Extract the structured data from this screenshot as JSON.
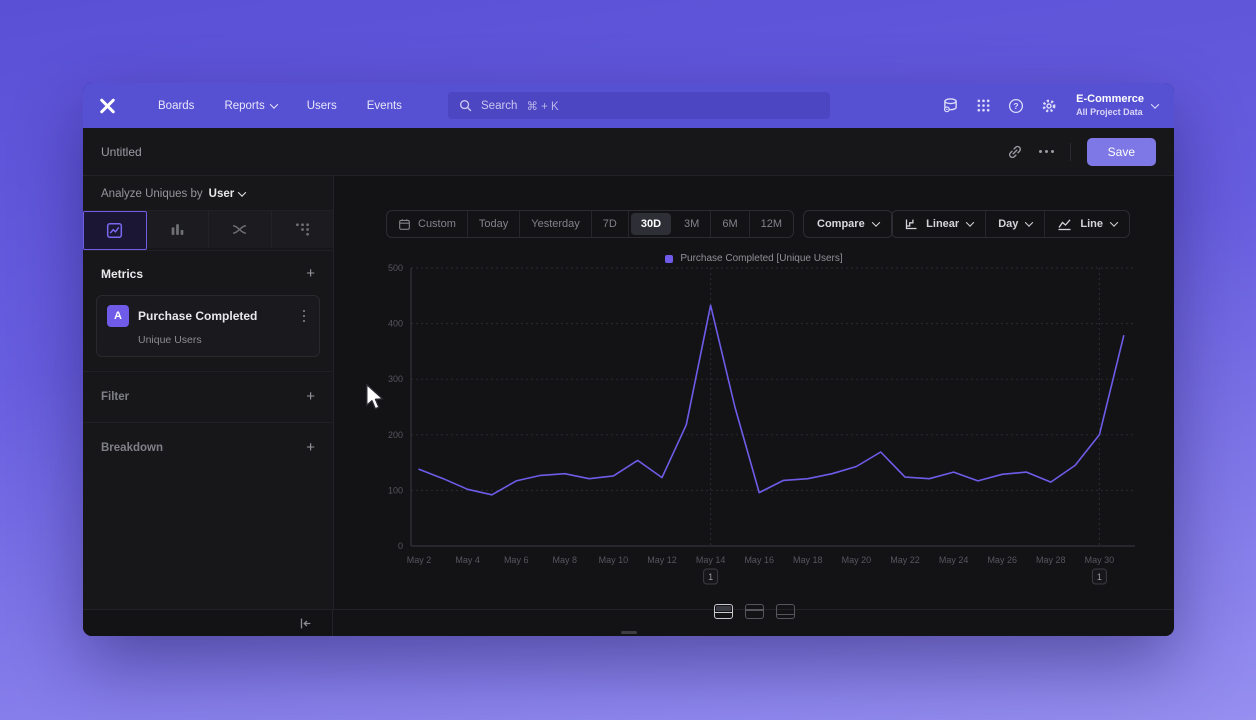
{
  "nav": {
    "items": [
      {
        "label": "Boards",
        "dropdown": false
      },
      {
        "label": "Reports",
        "dropdown": true
      },
      {
        "label": "Users",
        "dropdown": false
      },
      {
        "label": "Events",
        "dropdown": false
      }
    ],
    "search_placeholder": "Search",
    "search_shortcut": "⌘ + K",
    "project_name": "E-Commerce",
    "project_scope": "All Project Data"
  },
  "header": {
    "title": "Untitled",
    "save": "Save"
  },
  "sidebar": {
    "analyze_text": "Analyze Uniques by",
    "analyze_value": "User",
    "metrics_label": "Metrics",
    "add_symbol": "+",
    "metric": {
      "badge": "A",
      "title": "Purchase Completed",
      "subtitle": "Unique Users"
    },
    "filter_label": "Filter",
    "breakdown_label": "Breakdown"
  },
  "toolbar": {
    "ranges": [
      "Custom",
      "Today",
      "Yesterday",
      "7D",
      "30D",
      "3M",
      "6M",
      "12M"
    ],
    "active_range": "30D",
    "compare": "Compare",
    "scale": "Linear",
    "interval": "Day",
    "chart_type": "Line"
  },
  "chart_data": {
    "type": "line",
    "legend": "Purchase Completed [Unique Users]",
    "series_color": "#6e5ce8",
    "x": [
      "May 2",
      "May 3",
      "May 4",
      "May 5",
      "May 6",
      "May 7",
      "May 8",
      "May 9",
      "May 10",
      "May 11",
      "May 12",
      "May 13",
      "May 14",
      "May 15",
      "May 16",
      "May 17",
      "May 18",
      "May 19",
      "May 20",
      "May 21",
      "May 22",
      "May 23",
      "May 24",
      "May 25",
      "May 26",
      "May 27",
      "May 28",
      "May 29",
      "May 30",
      "May 31"
    ],
    "values": [
      138,
      121,
      102,
      92,
      117,
      127,
      130,
      121,
      126,
      154,
      123,
      218,
      433,
      250,
      96,
      118,
      121,
      130,
      143,
      169,
      124,
      121,
      133,
      117,
      129,
      133,
      115,
      145,
      200,
      378
    ],
    "x_tick_every": 2,
    "ylim": [
      0,
      500
    ],
    "yticks": [
      0,
      100,
      200,
      300,
      400,
      500
    ],
    "grid": "dashed-horizontal",
    "legend_position": "top-center",
    "annotations": [
      {
        "x_index": 12,
        "label": "1"
      },
      {
        "x_index": 28,
        "label": "1"
      }
    ]
  },
  "colors": {
    "accent": "#6e5ce8",
    "navbar": "#5651d3",
    "save_button": "#7d78e5",
    "panel": "#17171a",
    "canvas": "#131316"
  }
}
